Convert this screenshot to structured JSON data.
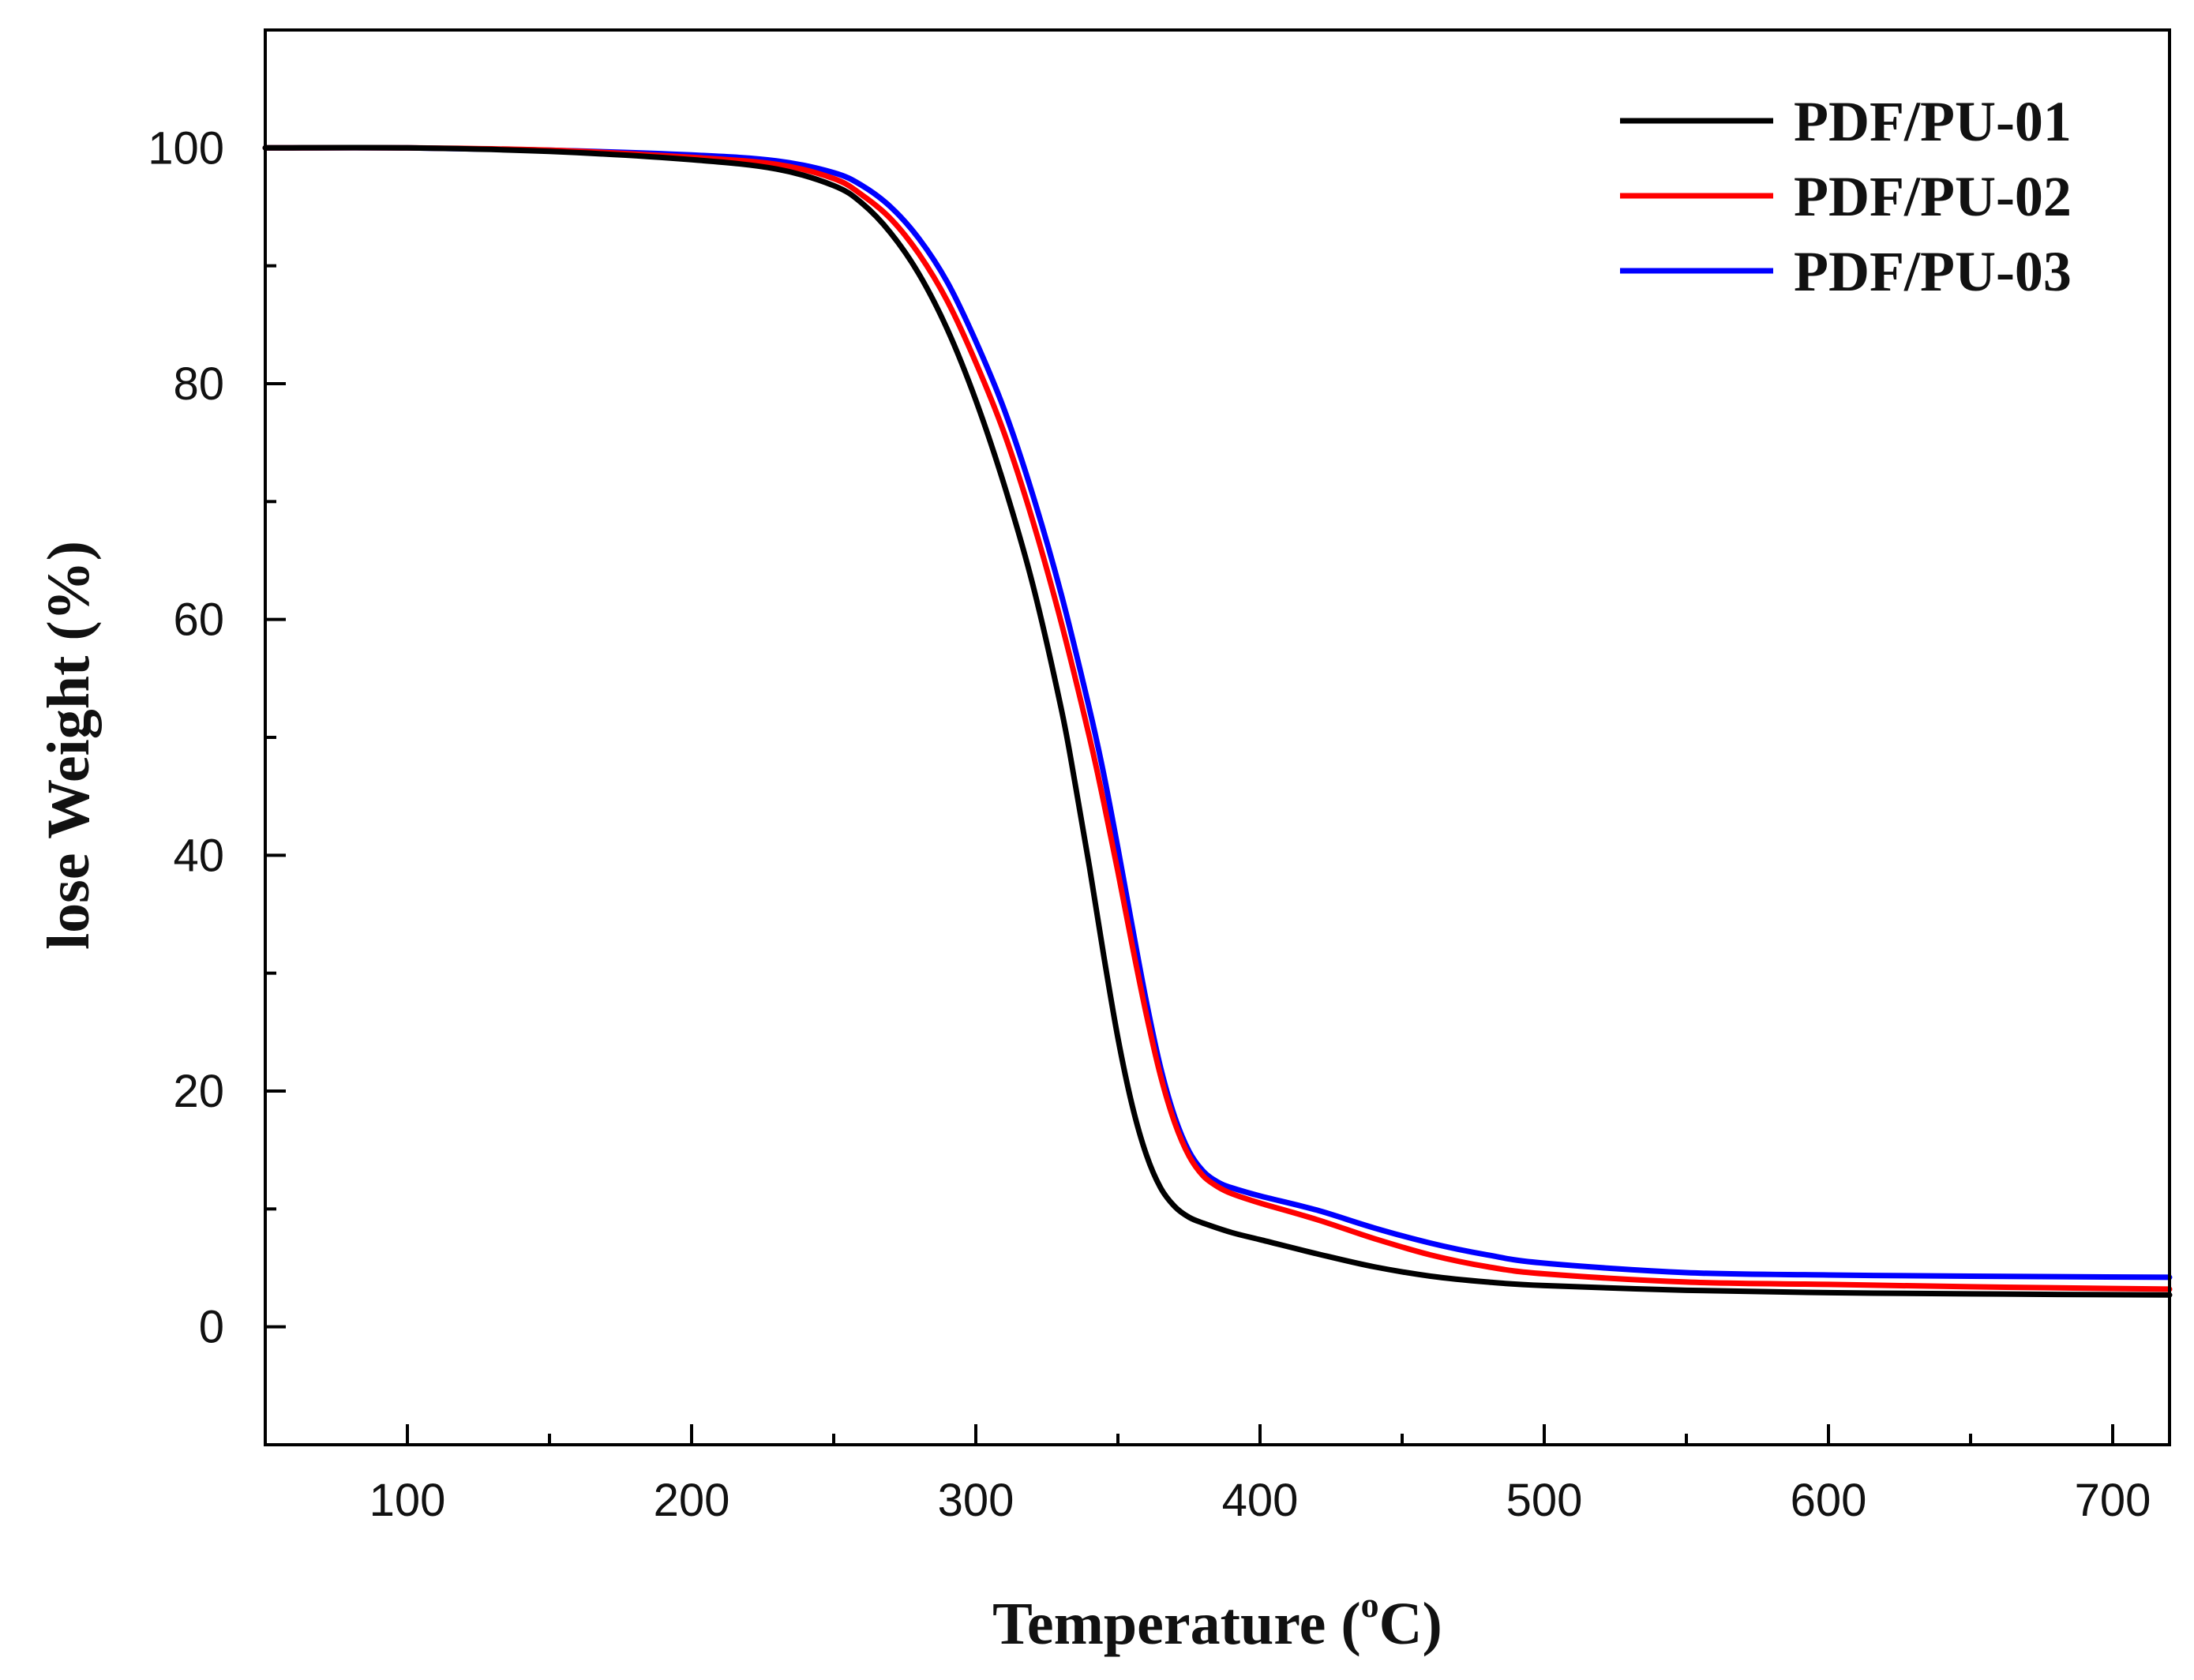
{
  "chart_data": {
    "type": "line",
    "title": "",
    "xlabel": "Temperature (",
    "xlabel_sup": "o",
    "xlabel_unit": "C)",
    "ylabel": "lose Weight (%)",
    "xlim": [
      50,
      720
    ],
    "ylim": [
      -10,
      110
    ],
    "x_ticks": [
      100,
      200,
      300,
      400,
      500,
      600,
      700
    ],
    "x_tick_labels": [
      "100",
      "200",
      "300",
      "400",
      "500",
      "600",
      "700"
    ],
    "y_ticks": [
      0,
      20,
      40,
      60,
      80,
      100
    ],
    "y_tick_labels": [
      "0",
      "20",
      "40",
      "60",
      "80",
      "100"
    ],
    "legend_position": "top-right",
    "grid": false,
    "series": [
      {
        "name": "PDF/PU-01",
        "color": "#000000",
        "x": [
          50,
          100,
          150,
          200,
          230,
          250,
          260,
          270,
          280,
          290,
          300,
          310,
          320,
          330,
          335,
          340,
          345,
          350,
          355,
          360,
          365,
          370,
          375,
          380,
          390,
          400,
          420,
          440,
          460,
          480,
          500,
          550,
          600,
          650,
          720
        ],
        "y": [
          100,
          100,
          99.7,
          99.0,
          98.2,
          96.8,
          95.3,
          92.8,
          89.3,
          84.6,
          78.6,
          71.4,
          63.0,
          52.5,
          46.0,
          39.0,
          31.5,
          24.5,
          18.8,
          14.6,
          11.8,
          10.2,
          9.3,
          8.8,
          8.0,
          7.4,
          6.2,
          5.1,
          4.3,
          3.8,
          3.5,
          3.1,
          2.9,
          2.8,
          2.7
        ]
      },
      {
        "name": "PDF/PU-02",
        "color": "#ff0000",
        "x": [
          50,
          100,
          150,
          200,
          230,
          250,
          260,
          270,
          280,
          290,
          300,
          310,
          320,
          330,
          340,
          345,
          350,
          355,
          360,
          365,
          370,
          375,
          380,
          385,
          390,
          400,
          420,
          440,
          460,
          480,
          500,
          550,
          600,
          650,
          720
        ],
        "y": [
          100,
          100,
          99.8,
          99.2,
          98.6,
          97.4,
          96.0,
          94.0,
          91.0,
          87.0,
          81.8,
          75.8,
          68.4,
          59.8,
          50.0,
          44.5,
          38.6,
          32.4,
          26.5,
          21.3,
          17.3,
          14.5,
          12.8,
          11.9,
          11.3,
          10.5,
          9.1,
          7.5,
          6.1,
          5.1,
          4.5,
          3.8,
          3.6,
          3.4,
          3.2
        ]
      },
      {
        "name": "PDF/PU-03",
        "color": "#0000ff",
        "x": [
          50,
          100,
          150,
          200,
          230,
          250,
          260,
          270,
          280,
          290,
          300,
          310,
          320,
          330,
          340,
          345,
          350,
          355,
          360,
          365,
          370,
          375,
          380,
          385,
          390,
          400,
          420,
          440,
          460,
          480,
          500,
          550,
          600,
          650,
          720
        ],
        "y": [
          100,
          100,
          99.8,
          99.4,
          98.9,
          97.9,
          96.8,
          95.0,
          92.3,
          88.6,
          83.6,
          77.8,
          70.6,
          62.2,
          52.4,
          46.9,
          40.6,
          34.0,
          27.6,
          22.0,
          17.8,
          14.9,
          13.2,
          12.3,
          11.8,
          11.1,
          9.9,
          8.4,
          7.1,
          6.1,
          5.4,
          4.6,
          4.4,
          4.3,
          4.2
        ]
      }
    ]
  }
}
